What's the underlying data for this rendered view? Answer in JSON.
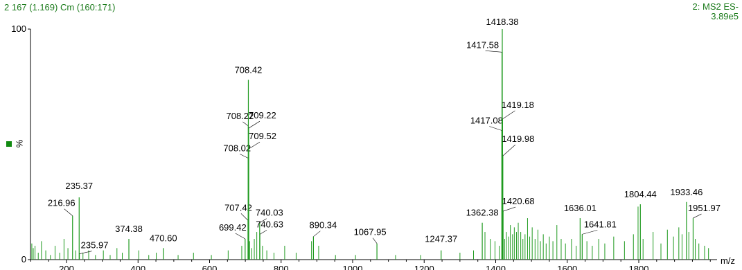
{
  "header": {
    "left": "2 167 (1.169) Cm (160:171)",
    "right_line1": "2: MS2 ES-",
    "right_line2": "3.89e5"
  },
  "chart_data": {
    "type": "bar",
    "title": "2 167 (1.169) Cm (160:171)",
    "xlabel": "m/z",
    "ylabel": "%",
    "xlim": [
      100,
      2000
    ],
    "ylim": [
      0,
      100
    ],
    "xticks": [
      200,
      400,
      600,
      800,
      1000,
      1200,
      1400,
      1600,
      1800
    ],
    "yticks": [
      0,
      100
    ],
    "line_color": "#1f9a1f",
    "labeled_peaks": [
      {
        "mz": 216.96,
        "intensity": 19,
        "label": "216.96"
      },
      {
        "mz": 235.37,
        "intensity": 27,
        "label": "235.37"
      },
      {
        "mz": 235.97,
        "intensity": 2.5,
        "label": "235.97"
      },
      {
        "mz": 374.38,
        "intensity": 9,
        "label": "374.38"
      },
      {
        "mz": 470.6,
        "intensity": 5,
        "label": "470.60"
      },
      {
        "mz": 699.42,
        "intensity": 9,
        "label": "699.42"
      },
      {
        "mz": 707.42,
        "intensity": 17,
        "label": "707.42"
      },
      {
        "mz": 708.02,
        "intensity": 44,
        "label": "708.02"
      },
      {
        "mz": 708.22,
        "intensity": 58,
        "label": "708.22"
      },
      {
        "mz": 708.42,
        "intensity": 78,
        "label": "708.42"
      },
      {
        "mz": 709.22,
        "intensity": 57,
        "label": "709.22"
      },
      {
        "mz": 709.52,
        "intensity": 48,
        "label": "709.52"
      },
      {
        "mz": 740.03,
        "intensity": 16,
        "label": "740.03"
      },
      {
        "mz": 740.63,
        "intensity": 11,
        "label": "740.63"
      },
      {
        "mz": 890.34,
        "intensity": 10,
        "label": "890.34"
      },
      {
        "mz": 1067.95,
        "intensity": 7,
        "label": "1067.95"
      },
      {
        "mz": 1247.37,
        "intensity": 4,
        "label": "1247.37"
      },
      {
        "mz": 1362.38,
        "intensity": 16,
        "label": "1362.38"
      },
      {
        "mz": 1417.08,
        "intensity": 56,
        "label": "1417.08"
      },
      {
        "mz": 1417.58,
        "intensity": 90,
        "label": "1417.58"
      },
      {
        "mz": 1418.38,
        "intensity": 100,
        "label": "1418.38"
      },
      {
        "mz": 1419.18,
        "intensity": 61,
        "label": "1419.18"
      },
      {
        "mz": 1419.98,
        "intensity": 45,
        "label": "1419.98"
      },
      {
        "mz": 1420.68,
        "intensity": 21,
        "label": "1420.68"
      },
      {
        "mz": 1636.01,
        "intensity": 18,
        "label": "1636.01"
      },
      {
        "mz": 1641.81,
        "intensity": 11,
        "label": "1641.81"
      },
      {
        "mz": 1804.44,
        "intensity": 24,
        "label": "1804.44"
      },
      {
        "mz": 1933.46,
        "intensity": 25,
        "label": "1933.46"
      },
      {
        "mz": 1951.97,
        "intensity": 18,
        "label": "1951.97"
      }
    ],
    "minor_peaks": [
      {
        "mz": 103,
        "intensity": 7
      },
      {
        "mz": 107,
        "intensity": 5
      },
      {
        "mz": 112,
        "intensity": 6
      },
      {
        "mz": 121,
        "intensity": 3
      },
      {
        "mz": 130,
        "intensity": 8
      },
      {
        "mz": 142,
        "intensity": 4
      },
      {
        "mz": 155,
        "intensity": 2
      },
      {
        "mz": 168,
        "intensity": 6
      },
      {
        "mz": 181,
        "intensity": 3
      },
      {
        "mz": 193,
        "intensity": 9
      },
      {
        "mz": 204,
        "intensity": 5
      },
      {
        "mz": 226,
        "intensity": 4
      },
      {
        "mz": 246,
        "intensity": 3
      },
      {
        "mz": 262,
        "intensity": 4
      },
      {
        "mz": 281,
        "intensity": 2
      },
      {
        "mz": 303,
        "intensity": 4
      },
      {
        "mz": 322,
        "intensity": 2
      },
      {
        "mz": 341,
        "intensity": 5
      },
      {
        "mz": 356,
        "intensity": 3
      },
      {
        "mz": 402,
        "intensity": 4
      },
      {
        "mz": 430,
        "intensity": 2
      },
      {
        "mz": 451,
        "intensity": 3
      },
      {
        "mz": 512,
        "intensity": 2
      },
      {
        "mz": 555,
        "intensity": 3
      },
      {
        "mz": 605,
        "intensity": 2
      },
      {
        "mz": 652,
        "intensity": 4
      },
      {
        "mz": 690,
        "intensity": 6
      },
      {
        "mz": 712,
        "intensity": 8
      },
      {
        "mz": 718,
        "intensity": 5
      },
      {
        "mz": 725,
        "intensity": 9
      },
      {
        "mz": 732,
        "intensity": 12
      },
      {
        "mz": 748,
        "intensity": 6
      },
      {
        "mz": 760,
        "intensity": 4
      },
      {
        "mz": 780,
        "intensity": 3
      },
      {
        "mz": 810,
        "intensity": 6
      },
      {
        "mz": 842,
        "intensity": 3
      },
      {
        "mz": 885,
        "intensity": 8
      },
      {
        "mz": 905,
        "intensity": 6
      },
      {
        "mz": 952,
        "intensity": 2
      },
      {
        "mz": 1008,
        "intensity": 2
      },
      {
        "mz": 1120,
        "intensity": 2
      },
      {
        "mz": 1190,
        "intensity": 2
      },
      {
        "mz": 1300,
        "intensity": 3
      },
      {
        "mz": 1338,
        "intensity": 4
      },
      {
        "mz": 1370,
        "intensity": 12
      },
      {
        "mz": 1385,
        "intensity": 9
      },
      {
        "mz": 1398,
        "intensity": 8
      },
      {
        "mz": 1410,
        "intensity": 6
      },
      {
        "mz": 1425,
        "intensity": 9
      },
      {
        "mz": 1430,
        "intensity": 12
      },
      {
        "mz": 1436,
        "intensity": 10
      },
      {
        "mz": 1441,
        "intensity": 15
      },
      {
        "mz": 1447,
        "intensity": 11
      },
      {
        "mz": 1452,
        "intensity": 14
      },
      {
        "mz": 1458,
        "intensity": 12
      },
      {
        "mz": 1463,
        "intensity": 16
      },
      {
        "mz": 1470,
        "intensity": 12
      },
      {
        "mz": 1476,
        "intensity": 9
      },
      {
        "mz": 1482,
        "intensity": 11
      },
      {
        "mz": 1489,
        "intensity": 18
      },
      {
        "mz": 1495,
        "intensity": 10
      },
      {
        "mz": 1502,
        "intensity": 14
      },
      {
        "mz": 1510,
        "intensity": 9
      },
      {
        "mz": 1518,
        "intensity": 13
      },
      {
        "mz": 1525,
        "intensity": 8
      },
      {
        "mz": 1533,
        "intensity": 11
      },
      {
        "mz": 1541,
        "intensity": 7
      },
      {
        "mz": 1550,
        "intensity": 10
      },
      {
        "mz": 1560,
        "intensity": 8
      },
      {
        "mz": 1571,
        "intensity": 15
      },
      {
        "mz": 1583,
        "intensity": 9
      },
      {
        "mz": 1595,
        "intensity": 7
      },
      {
        "mz": 1612,
        "intensity": 9
      },
      {
        "mz": 1625,
        "intensity": 6
      },
      {
        "mz": 1655,
        "intensity": 8
      },
      {
        "mz": 1670,
        "intensity": 6
      },
      {
        "mz": 1688,
        "intensity": 9
      },
      {
        "mz": 1705,
        "intensity": 7
      },
      {
        "mz": 1730,
        "intensity": 10
      },
      {
        "mz": 1760,
        "intensity": 8
      },
      {
        "mz": 1785,
        "intensity": 11
      },
      {
        "mz": 1798,
        "intensity": 23
      },
      {
        "mz": 1812,
        "intensity": 9
      },
      {
        "mz": 1840,
        "intensity": 12
      },
      {
        "mz": 1862,
        "intensity": 7
      },
      {
        "mz": 1880,
        "intensity": 13
      },
      {
        "mz": 1897,
        "intensity": 10
      },
      {
        "mz": 1912,
        "intensity": 14
      },
      {
        "mz": 1921,
        "intensity": 11
      },
      {
        "mz": 1940,
        "intensity": 12
      },
      {
        "mz": 1958,
        "intensity": 9
      },
      {
        "mz": 1968,
        "intensity": 7
      },
      {
        "mz": 1984,
        "intensity": 6
      },
      {
        "mz": 1995,
        "intensity": 5
      }
    ]
  }
}
